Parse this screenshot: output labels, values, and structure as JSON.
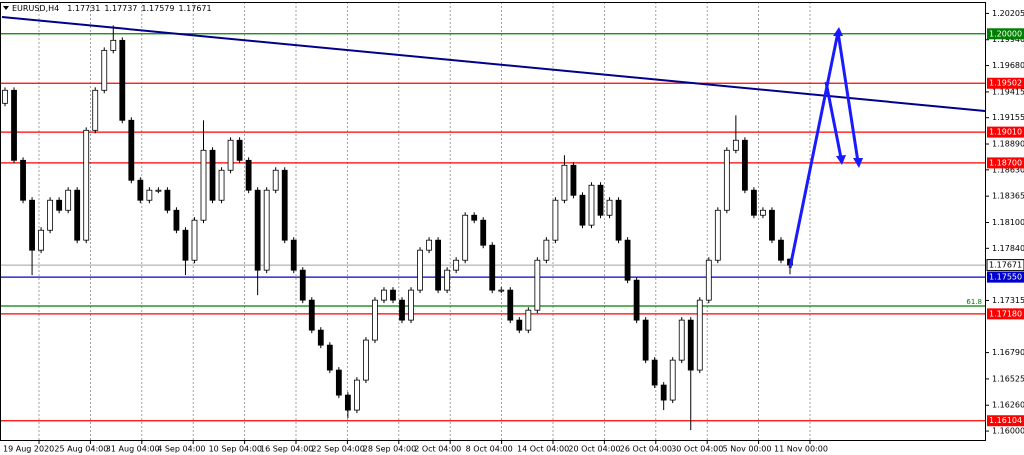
{
  "chart_data": {
    "type": "candlestick",
    "title": "EURUSD,H4",
    "ylim": [
      1.1591,
      1.2032
    ],
    "yticks": [
      1.20205,
      {
        "value": 1.1994,
        "label": "1.19940"
      },
      {
        "value": 1.1968,
        "label": "1.19680"
      },
      1.19415,
      1.19155,
      {
        "value": 1.1889,
        "label": "1.18890"
      },
      {
        "value": 1.1863,
        "label": "1.18630"
      },
      1.18365,
      {
        "value": 1.181,
        "label": "1.18100"
      },
      {
        "value": 1.1784,
        "label": "1.17840"
      },
      1.17315,
      {
        "value": 1.1679,
        "label": "1.16790"
      },
      1.16525,
      {
        "value": 1.1626,
        "label": "1.16260"
      },
      {
        "value": 1.16,
        "label": "1.16000"
      }
    ],
    "categories": [
      "19 Aug 2020",
      "25 Aug 04:00",
      "31 Aug 04:00",
      "4 Sep 04:00",
      "10 Sep 04:00",
      "16 Sep 04:00",
      "22 Sep 04:00",
      "28 Sep 04:00",
      "2 Oct 04:00",
      "8 Oct 04:00",
      "14 Oct 04:00",
      "20 Oct 04:00",
      "26 Oct 04:00",
      "30 Oct 04:00",
      "5 Nov 00:00",
      "11 Nov 00:00"
    ],
    "bull_color": "#ffffff",
    "bear_color": "#000000",
    "open": [
      1.193,
      1.19431,
      1.18726,
      1.18324,
      1.17821,
      1.18022,
      1.18324,
      1.18223,
      1.18425,
      1.17922,
      1.19028,
      1.19431,
      1.19833,
      1.19934,
      1.19129,
      1.18525,
      1.18324,
      1.18425,
      1.18425,
      1.18223,
      1.18022,
      1.1772,
      1.18123,
      1.18827,
      1.18324,
      1.18626,
      1.18928,
      1.18726,
      1.18425,
      1.1762,
      1.18425,
      1.18626,
      1.17922,
      1.1762,
      1.17318,
      1.17016,
      1.16865,
      1.16614,
      1.16362,
      1.16211,
      1.16513,
      1.16916,
      1.17318,
      1.17419,
      1.17318,
      1.17117,
      1.17419,
      1.17821,
      1.17922,
      1.17419,
      1.1762,
      1.1772,
      1.18173,
      1.18123,
      1.17871,
      1.17419,
      1.17419,
      1.17117,
      1.17016,
      1.17217,
      1.1772,
      1.17922,
      1.18324,
      1.18676,
      1.18374,
      1.18073,
      1.18475,
      1.18173,
      1.18324,
      1.17922,
      1.17519,
      1.17117,
      1.16714,
      1.16463,
      1.16312,
      1.16714,
      1.17117,
      1.16614,
      1.17318,
      1.1772,
      1.18223,
      1.18827,
      1.18928,
      1.18425,
      1.18173,
      1.18223,
      1.17922,
      1.17731
    ],
    "high": [
      1.19461,
      1.19461,
      1.18756,
      1.18354,
      1.18052,
      1.18354,
      1.18354,
      1.18455,
      1.18455,
      1.19058,
      1.19461,
      1.19863,
      1.20084,
      1.19964,
      1.19159,
      1.18555,
      1.18455,
      1.18455,
      1.18455,
      1.18253,
      1.18052,
      1.18153,
      1.19129,
      1.18857,
      1.18656,
      1.18958,
      1.18958,
      1.18756,
      1.18455,
      1.18455,
      1.18656,
      1.18656,
      1.17952,
      1.1765,
      1.17348,
      1.17046,
      1.16895,
      1.16644,
      1.16392,
      1.16543,
      1.16946,
      1.17348,
      1.17449,
      1.17449,
      1.17348,
      1.17449,
      1.17851,
      1.17952,
      1.17952,
      1.1765,
      1.1775,
      1.18203,
      1.18203,
      1.18153,
      1.17901,
      1.17449,
      1.17449,
      1.17147,
      1.17247,
      1.1775,
      1.17952,
      1.18354,
      1.18777,
      1.18706,
      1.18404,
      1.18505,
      1.18505,
      1.18354,
      1.18354,
      1.17952,
      1.17549,
      1.17147,
      1.16744,
      1.16493,
      1.16744,
      1.17147,
      1.17147,
      1.17348,
      1.1775,
      1.18253,
      1.18857,
      1.19179,
      1.18958,
      1.18455,
      1.18253,
      1.18253,
      1.17952,
      1.17737
    ],
    "low": [
      1.1927,
      1.18696,
      1.18294,
      1.1757,
      1.17791,
      1.17992,
      1.18193,
      1.18193,
      1.17892,
      1.17892,
      1.18998,
      1.19401,
      1.19803,
      1.19099,
      1.18495,
      1.18294,
      1.18294,
      1.18395,
      1.18193,
      1.17992,
      1.1757,
      1.1769,
      1.18093,
      1.18294,
      1.18294,
      1.18596,
      1.18696,
      1.18395,
      1.17368,
      1.1759,
      1.18395,
      1.17892,
      1.1759,
      1.17288,
      1.16986,
      1.16835,
      1.16584,
      1.16332,
      1.16131,
      1.16181,
      1.16483,
      1.16886,
      1.17288,
      1.17288,
      1.17087,
      1.17087,
      1.17389,
      1.17791,
      1.17389,
      1.17389,
      1.1759,
      1.1769,
      1.18093,
      1.17841,
      1.17389,
      1.17389,
      1.17087,
      1.16986,
      1.16986,
      1.17187,
      1.1769,
      1.17892,
      1.18294,
      1.18344,
      1.18043,
      1.18043,
      1.18143,
      1.18143,
      1.17892,
      1.17489,
      1.17087,
      1.16684,
      1.16433,
      1.16211,
      1.16282,
      1.16684,
      1.1601,
      1.16584,
      1.17288,
      1.1769,
      1.18193,
      1.18797,
      1.18395,
      1.18143,
      1.18143,
      1.17892,
      1.1769,
      1.17579
    ],
    "close": [
      1.19431,
      1.18726,
      1.18324,
      1.17821,
      1.18022,
      1.18324,
      1.18223,
      1.18425,
      1.17922,
      1.19028,
      1.19431,
      1.19833,
      1.19934,
      1.19129,
      1.18525,
      1.18324,
      1.18425,
      1.18425,
      1.18223,
      1.18022,
      1.1772,
      1.18123,
      1.18827,
      1.18324,
      1.18626,
      1.18928,
      1.18726,
      1.18425,
      1.1762,
      1.18425,
      1.18626,
      1.17922,
      1.1762,
      1.17318,
      1.17016,
      1.16865,
      1.16614,
      1.16362,
      1.16211,
      1.16513,
      1.16916,
      1.17318,
      1.17419,
      1.17318,
      1.17117,
      1.17419,
      1.17821,
      1.17922,
      1.17419,
      1.1762,
      1.1772,
      1.18173,
      1.18123,
      1.17871,
      1.17419,
      1.17419,
      1.17117,
      1.17016,
      1.17217,
      1.1772,
      1.17922,
      1.18324,
      1.18676,
      1.18374,
      1.18073,
      1.18475,
      1.18173,
      1.18324,
      1.17922,
      1.17519,
      1.17117,
      1.16714,
      1.16463,
      1.16312,
      1.16714,
      1.17117,
      1.16614,
      1.17318,
      1.1772,
      1.18223,
      1.18827,
      1.18928,
      1.18425,
      1.18173,
      1.18223,
      1.17922,
      1.1772,
      1.17671
    ],
    "levels": [
      {
        "value": 1.2,
        "label": "1.20000",
        "color": "#008000"
      },
      {
        "value": 1.19502,
        "label": "1.19502",
        "color": "#ff0000"
      },
      {
        "value": 1.1901,
        "label": "1.19010",
        "color": "#ff0000"
      },
      {
        "value": 1.187,
        "label": "1.18700",
        "color": "#ff0000"
      },
      {
        "value": 1.1755,
        "label": "1.17550",
        "color": "#0000cd"
      },
      {
        "value": 1.1718,
        "label": "1.17180",
        "color": "#ff0000"
      },
      {
        "value": 1.16104,
        "label": "1.16104",
        "color": "#ff0000"
      }
    ],
    "fib_level": {
      "value": 1.17259,
      "ratio": 61.8,
      "color": "#008000"
    }
  }
}
